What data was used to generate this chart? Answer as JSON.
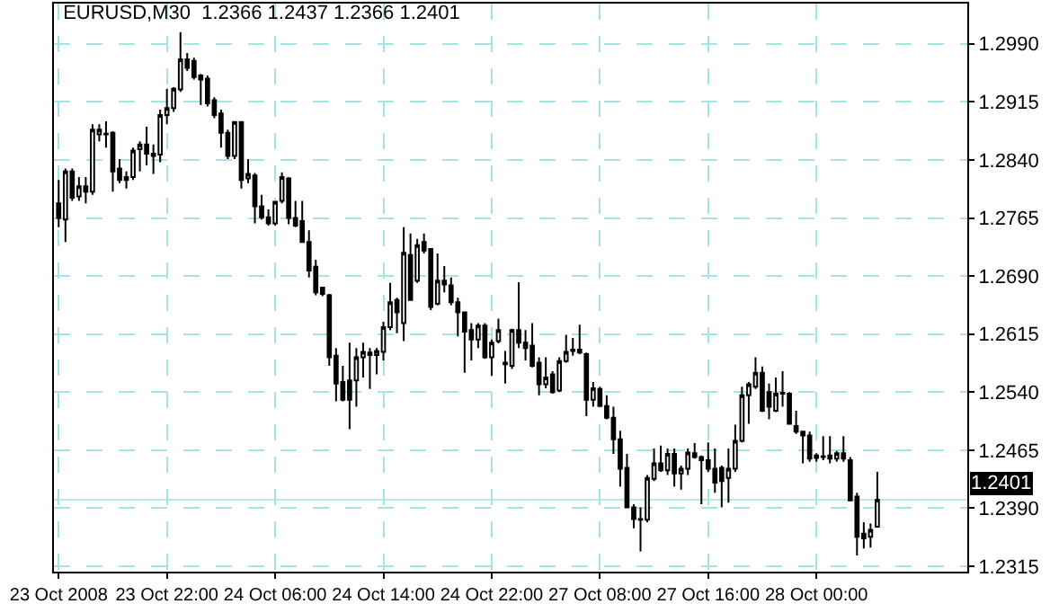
{
  "chart_data": {
    "type": "candlestick",
    "title": "EURUSD,M30  1.2366 1.2437 1.2366 1.2401",
    "categories": [
      "23 Oct 2008",
      null,
      null,
      null,
      null,
      null,
      null,
      null,
      null,
      null,
      null,
      null,
      null,
      null,
      null,
      null,
      "23 Oct 22:00",
      null,
      null,
      null,
      null,
      null,
      null,
      null,
      null,
      null,
      null,
      null,
      null,
      null,
      null,
      null,
      "24 Oct 06:00",
      null,
      null,
      null,
      null,
      null,
      null,
      null,
      null,
      null,
      null,
      null,
      null,
      null,
      null,
      null,
      "24 Oct 14:00",
      null,
      null,
      null,
      null,
      null,
      null,
      null,
      null,
      null,
      null,
      null,
      null,
      null,
      null,
      null,
      "24 Oct 22:00",
      null,
      null,
      null,
      null,
      null,
      null,
      null,
      null,
      null,
      null,
      null,
      null,
      null,
      null,
      null,
      "27 Oct 08:00",
      null,
      null,
      null,
      null,
      null,
      null,
      null,
      null,
      null,
      null,
      null,
      null,
      null,
      null,
      null,
      "27 Oct 16:00",
      null,
      null,
      null,
      null,
      null,
      null,
      null,
      null,
      null,
      null,
      null,
      null,
      null,
      null,
      null,
      "28 Oct 00:00",
      null,
      null,
      null,
      null,
      null,
      null,
      null,
      null,
      null
    ],
    "ohlc": [
      [
        1.2784,
        1.2814,
        1.2753,
        1.2765
      ],
      [
        1.2763,
        1.2829,
        1.2734,
        1.2825
      ],
      [
        1.2825,
        1.2829,
        1.2787,
        1.2791
      ],
      [
        1.2793,
        1.2818,
        1.2787,
        1.2806
      ],
      [
        1.2806,
        1.2818,
        1.2784,
        1.2799
      ],
      [
        1.2799,
        1.2886,
        1.2795,
        1.2879
      ],
      [
        1.2873,
        1.2886,
        1.2864,
        1.2879
      ],
      [
        1.2874,
        1.289,
        1.2856,
        1.2873
      ],
      [
        1.2875,
        1.2877,
        1.2799,
        1.2825
      ],
      [
        1.2829,
        1.2841,
        1.281,
        1.2814
      ],
      [
        1.2818,
        1.2825,
        1.2803,
        1.2814
      ],
      [
        1.2818,
        1.2856,
        1.2814,
        1.2852
      ],
      [
        1.2854,
        1.2864,
        1.2825,
        1.286
      ],
      [
        1.286,
        1.2883,
        1.2833,
        1.2848
      ],
      [
        1.2848,
        1.286,
        1.2822,
        1.2845
      ],
      [
        1.2847,
        1.2905,
        1.2837,
        1.2898
      ],
      [
        1.2898,
        1.2932,
        1.2886,
        1.2907
      ],
      [
        1.2907,
        1.2934,
        1.2902,
        1.2932
      ],
      [
        1.2931,
        1.3005,
        1.2928,
        1.297
      ],
      [
        1.297,
        1.2978,
        1.2955,
        1.2959
      ],
      [
        1.2968,
        1.2972,
        1.2944,
        1.2947
      ],
      [
        1.2949,
        1.2951,
        1.2911,
        1.2944
      ],
      [
        1.2945,
        1.2949,
        1.2909,
        1.2913
      ],
      [
        1.2917,
        1.2921,
        1.2894,
        1.2898
      ],
      [
        1.29,
        1.2905,
        1.2856,
        1.2875
      ],
      [
        1.2875,
        1.2879,
        1.2841,
        1.2845
      ],
      [
        1.2845,
        1.289,
        1.2841,
        1.2889
      ],
      [
        1.2889,
        1.289,
        1.2803,
        1.2814
      ],
      [
        1.2816,
        1.2841,
        1.281,
        1.2822
      ],
      [
        1.282,
        1.2823,
        1.2758,
        1.278
      ],
      [
        1.278,
        1.2795,
        1.2763,
        1.2766
      ],
      [
        1.2766,
        1.2776,
        1.2755,
        1.2758
      ],
      [
        1.2758,
        1.2787,
        1.2755,
        1.2786
      ],
      [
        1.2787,
        1.2824,
        1.2784,
        1.2818
      ],
      [
        1.2816,
        1.2818,
        1.2757,
        1.2765
      ],
      [
        1.2765,
        1.2787,
        1.2753,
        1.2755
      ],
      [
        1.2761,
        1.2787,
        1.2734,
        1.2734
      ],
      [
        1.2734,
        1.2749,
        1.2688,
        1.2697
      ],
      [
        1.2702,
        1.2711,
        1.2665,
        1.2669
      ],
      [
        1.2675,
        1.2676,
        1.2664,
        1.2667
      ],
      [
        1.2665,
        1.2667,
        1.2574,
        1.2585
      ],
      [
        1.2587,
        1.2597,
        1.2528,
        1.2551
      ],
      [
        1.2553,
        1.2574,
        1.2528,
        1.253
      ],
      [
        1.2555,
        1.2604,
        1.2492,
        1.253
      ],
      [
        1.2555,
        1.2597,
        1.2521,
        1.2585
      ],
      [
        1.2585,
        1.2604,
        1.2559,
        1.2592
      ],
      [
        1.2588,
        1.2597,
        1.2544,
        1.2591
      ],
      [
        1.2588,
        1.2597,
        1.2563,
        1.2593
      ],
      [
        1.2592,
        1.2631,
        1.2581,
        1.2624
      ],
      [
        1.2624,
        1.2681,
        1.262,
        1.2656
      ],
      [
        1.2659,
        1.2662,
        1.2616,
        1.2643
      ],
      [
        1.2629,
        1.2753,
        1.2606,
        1.272
      ],
      [
        1.2717,
        1.2745,
        1.2658,
        1.2659
      ],
      [
        1.2684,
        1.2738,
        1.2681,
        1.273
      ],
      [
        1.2734,
        1.2745,
        1.2719,
        1.2723
      ],
      [
        1.2725,
        1.2726,
        1.2646,
        1.265
      ],
      [
        1.2654,
        1.2719,
        1.2652,
        1.2684
      ],
      [
        1.2684,
        1.2703,
        1.2669,
        1.2679
      ],
      [
        1.2678,
        1.2688,
        1.2652,
        1.2656
      ],
      [
        1.2656,
        1.2662,
        1.2612,
        1.2643
      ],
      [
        1.2643,
        1.2644,
        1.2565,
        1.2618
      ],
      [
        1.262,
        1.2629,
        1.2581,
        1.2608
      ],
      [
        1.2608,
        1.2629,
        1.2597,
        1.2626
      ],
      [
        1.2626,
        1.2629,
        1.2583,
        1.2585
      ],
      [
        1.2585,
        1.2608,
        1.2561,
        1.2604
      ],
      [
        1.2606,
        1.2635,
        1.2603,
        1.262
      ],
      [
        1.2578,
        1.2593,
        1.2551,
        1.2576
      ],
      [
        1.2574,
        1.2622,
        1.257,
        1.262
      ],
      [
        1.262,
        1.2682,
        1.2597,
        1.2604
      ],
      [
        1.2604,
        1.262,
        1.2581,
        1.2597
      ],
      [
        1.26,
        1.2629,
        1.2572,
        1.2574
      ],
      [
        1.2578,
        1.2585,
        1.2536,
        1.255
      ],
      [
        1.255,
        1.2585,
        1.2545,
        1.2559
      ],
      [
        1.2563,
        1.2567,
        1.2538,
        1.254
      ],
      [
        1.2542,
        1.2585,
        1.254,
        1.258
      ],
      [
        1.258,
        1.2614,
        1.2578,
        1.2592
      ],
      [
        1.2595,
        1.261,
        1.2587,
        1.2593
      ],
      [
        1.2595,
        1.2627,
        1.2589,
        1.2591
      ],
      [
        1.2589,
        1.2591,
        1.2509,
        1.253
      ],
      [
        1.253,
        1.2553,
        1.2521,
        1.2545
      ],
      [
        1.2544,
        1.2547,
        1.2521,
        1.2522
      ],
      [
        1.2522,
        1.2536,
        1.2505,
        1.2507
      ],
      [
        1.2507,
        1.2521,
        1.246,
        1.2479
      ],
      [
        1.2479,
        1.249,
        1.2418,
        1.2441
      ],
      [
        1.2442,
        1.246,
        1.239,
        1.2391
      ],
      [
        1.2391,
        1.2395,
        1.2364,
        1.2376
      ],
      [
        1.2376,
        1.2391,
        1.2334,
        1.2375
      ],
      [
        1.2375,
        1.2433,
        1.2372,
        1.2429
      ],
      [
        1.2428,
        1.2467,
        1.2425,
        1.2448
      ],
      [
        1.2448,
        1.2471,
        1.2437,
        1.2439
      ],
      [
        1.2439,
        1.2467,
        1.2433,
        1.246
      ],
      [
        1.246,
        1.2467,
        1.2418,
        1.2435
      ],
      [
        1.2435,
        1.2445,
        1.2414,
        1.2441
      ],
      [
        1.2441,
        1.2467,
        1.2433,
        1.2462
      ],
      [
        1.2461,
        1.2474,
        1.2454,
        1.2456
      ],
      [
        1.2456,
        1.2458,
        1.2395,
        1.2452
      ],
      [
        1.2452,
        1.2475,
        1.2437,
        1.2441
      ],
      [
        1.2441,
        1.2467,
        1.241,
        1.2423
      ],
      [
        1.2442,
        1.2445,
        1.2391,
        1.2425
      ],
      [
        1.2429,
        1.2467,
        1.2397,
        1.2441
      ],
      [
        1.2441,
        1.2498,
        1.2437,
        1.2477
      ],
      [
        1.2477,
        1.2547,
        1.2475,
        1.2536
      ],
      [
        1.2536,
        1.2553,
        1.2499,
        1.255
      ],
      [
        1.2547,
        1.2585,
        1.2544,
        1.2565
      ],
      [
        1.2565,
        1.2573,
        1.2514,
        1.2516
      ],
      [
        1.254,
        1.2551,
        1.2505,
        1.2521
      ],
      [
        1.2516,
        1.2559,
        1.2514,
        1.2538
      ],
      [
        1.2539,
        1.2567,
        1.2521,
        1.2538
      ],
      [
        1.2538,
        1.254,
        1.2498,
        1.2499
      ],
      [
        1.2496,
        1.2516,
        1.2486,
        1.2489
      ],
      [
        1.2489,
        1.249,
        1.2448,
        1.2484
      ],
      [
        1.2484,
        1.2489,
        1.245,
        1.2454
      ],
      [
        1.2458,
        1.2461,
        1.245,
        1.2455
      ],
      [
        1.2457,
        1.2483,
        1.2452,
        1.2456
      ],
      [
        1.2458,
        1.2483,
        1.2448,
        1.2454
      ],
      [
        1.2454,
        1.2464,
        1.245,
        1.2461
      ],
      [
        1.2461,
        1.2483,
        1.245,
        1.2454
      ],
      [
        1.2452,
        1.2456,
        1.2399,
        1.24
      ],
      [
        1.2405,
        1.241,
        1.2329,
        1.2353
      ],
      [
        1.2357,
        1.2372,
        1.2338,
        1.2351
      ],
      [
        1.2353,
        1.237,
        1.2339,
        1.2362
      ],
      [
        1.2366,
        1.2437,
        1.2366,
        1.2401
      ]
    ],
    "ylim": [
      1.2308,
      1.3042
    ],
    "yticks": [
      1.2315,
      {
        "value": 1.239,
        "label": "1.2390"
      },
      1.2465,
      {
        "value": 1.254,
        "label": "1.2540"
      },
      1.2615,
      {
        "value": 1.269,
        "label": "1.2690"
      },
      1.2765,
      {
        "value": 1.284,
        "label": "1.2840"
      },
      1.2915,
      {
        "value": 1.299,
        "label": "1.2990"
      }
    ],
    "grid": true,
    "ref_lines": [
      {
        "axis": "y",
        "value": 1.2401,
        "label": "1.2401",
        "color": "#b4eaea"
      }
    ]
  }
}
